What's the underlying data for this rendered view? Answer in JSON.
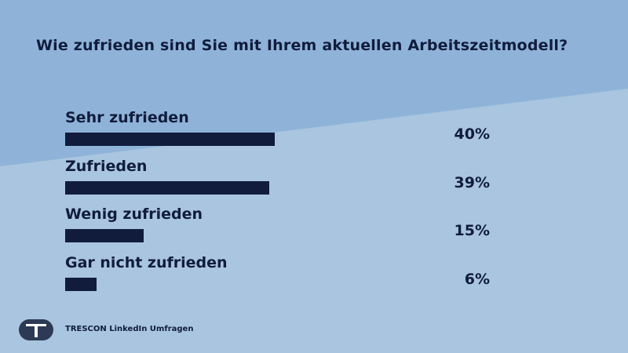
{
  "chart_data": {
    "type": "bar",
    "orientation": "horizontal",
    "title": "Wie zufrieden sind Sie mit Ihrem aktuellen Arbeitszeitmodell?",
    "categories": [
      "Sehr zufrieden",
      "Zufrieden",
      "Wenig zufrieden",
      "Gar nicht zufrieden"
    ],
    "values": [
      40,
      39,
      15,
      6
    ],
    "value_labels": [
      "40%",
      "39%",
      "15%",
      "6%"
    ],
    "unit": "%",
    "xlim": [
      0,
      100
    ],
    "bar_color": "#111c3d"
  },
  "footer": {
    "brand": "TRESCON LinkedIn Umfragen",
    "logo_letter": "T"
  },
  "colors": {
    "bg_light": "#a9c5df",
    "bg_dark": "#8fb3d8",
    "text": "#111c3d"
  }
}
